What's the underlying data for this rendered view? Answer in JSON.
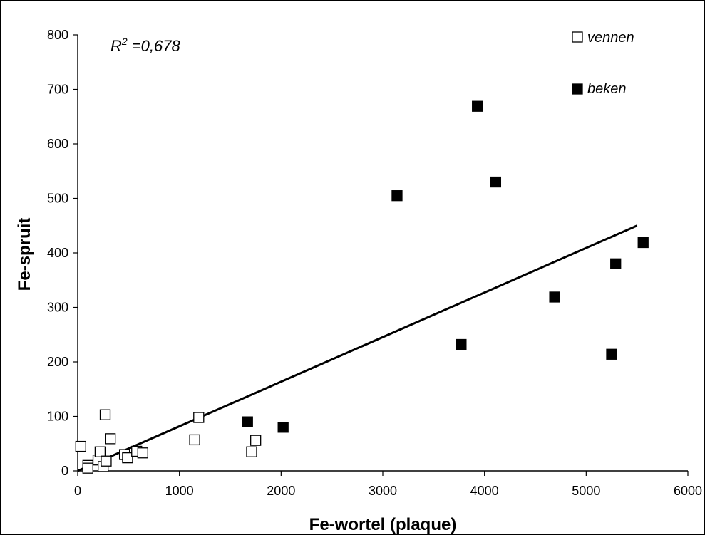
{
  "chart_data": {
    "type": "scatter",
    "title": "",
    "xlabel": "Fe-wortel (plaque)",
    "ylabel": "Fe-spruit",
    "xlim": [
      0,
      6000
    ],
    "ylim": [
      0,
      800
    ],
    "x_ticks": [
      0,
      1000,
      2000,
      3000,
      4000,
      5000,
      6000
    ],
    "y_ticks": [
      0,
      100,
      200,
      300,
      400,
      500,
      600,
      700,
      800
    ],
    "x_tick_labels": [
      "0",
      "1000",
      "2000",
      "3000",
      "4000",
      "5000",
      "6000"
    ],
    "y_tick_labels": [
      "0",
      "100",
      "200",
      "300",
      "400",
      "500",
      "600",
      "700",
      "800"
    ],
    "grid": false,
    "legend_position": "top-right",
    "annotation": {
      "r2_prefix": "R",
      "r2_superscript": "2",
      "r2_text": " =0,678"
    },
    "series": [
      {
        "name": "vennen",
        "marker": "hollow-square",
        "color": "#000000",
        "points": [
          [
            30,
            45
          ],
          [
            100,
            10
          ],
          [
            100,
            5
          ],
          [
            200,
            20
          ],
          [
            220,
            35
          ],
          [
            250,
            8
          ],
          [
            270,
            103
          ],
          [
            280,
            18
          ],
          [
            320,
            59
          ],
          [
            460,
            30
          ],
          [
            490,
            24
          ],
          [
            580,
            36
          ],
          [
            640,
            33
          ],
          [
            1150,
            57
          ],
          [
            1190,
            98
          ],
          [
            1710,
            35
          ],
          [
            1750,
            56
          ]
        ]
      },
      {
        "name": "beken",
        "marker": "filled-square",
        "color": "#000000",
        "points": [
          [
            1670,
            90
          ],
          [
            2020,
            80
          ],
          [
            3140,
            505
          ],
          [
            3770,
            232
          ],
          [
            3930,
            669
          ],
          [
            4110,
            530
          ],
          [
            4690,
            319
          ],
          [
            5250,
            214
          ],
          [
            5290,
            380
          ],
          [
            5560,
            419
          ]
        ]
      }
    ],
    "trendline": {
      "type": "linear",
      "x": [
        0,
        5500
      ],
      "y": [
        0,
        450
      ]
    }
  }
}
